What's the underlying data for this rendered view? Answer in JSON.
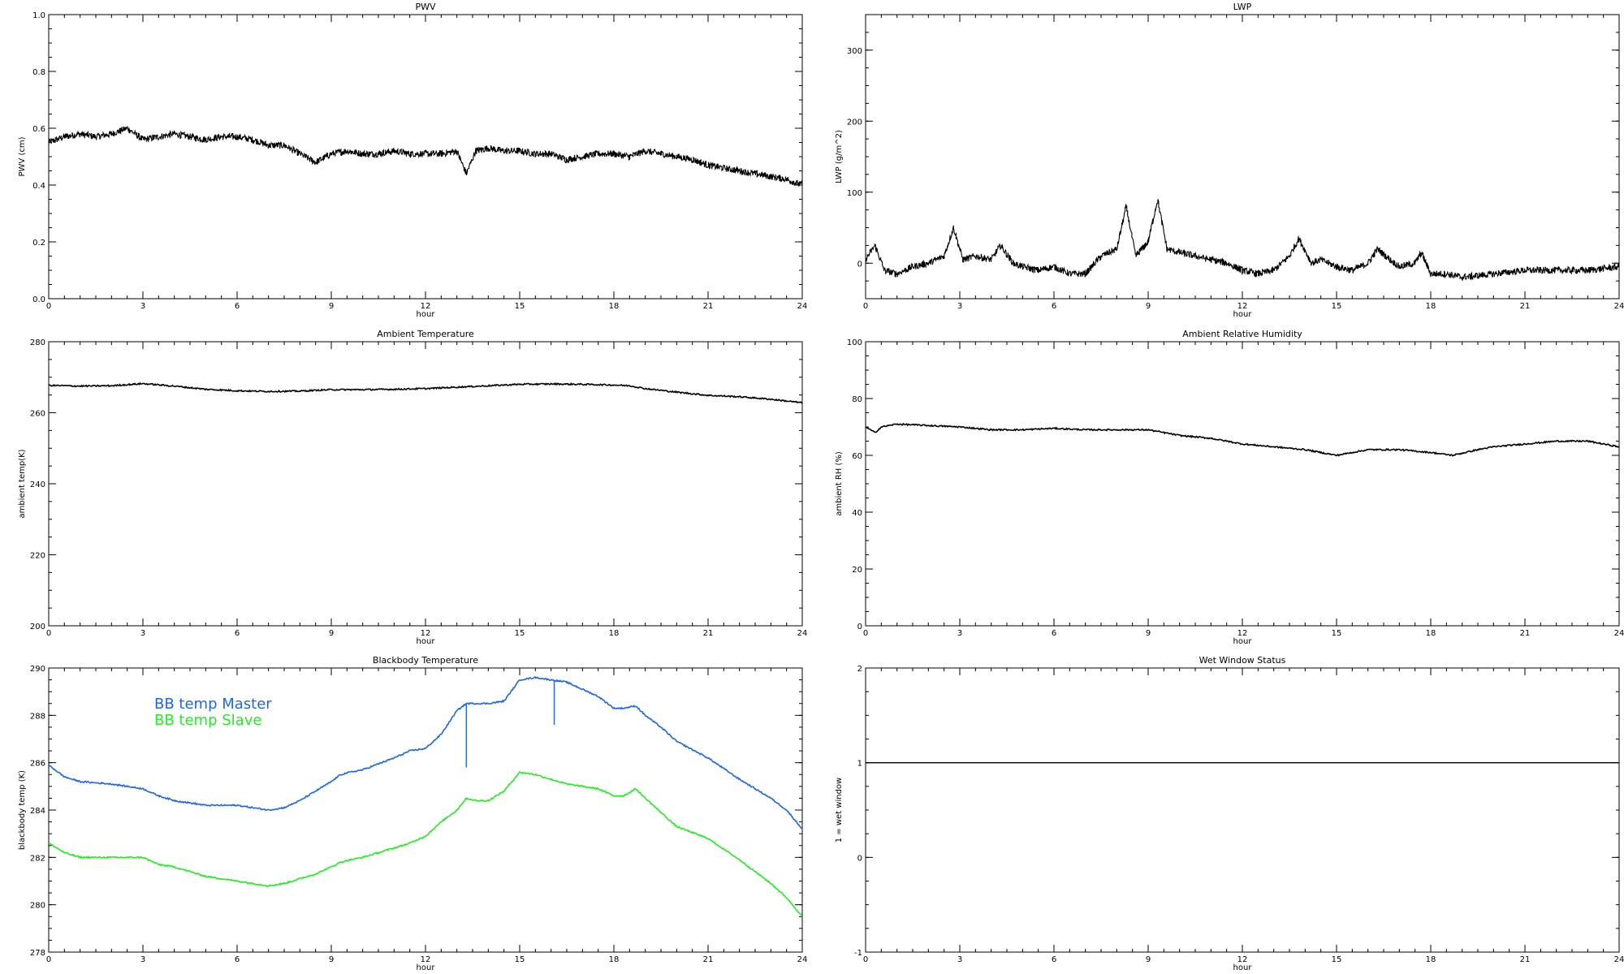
{
  "chart_data": [
    {
      "type": "line",
      "title": "PWV",
      "xlabel": "hour",
      "ylabel": "PWV (cm)",
      "xlim": [
        0,
        24
      ],
      "ylim": [
        0,
        1
      ],
      "xticks": [
        0,
        3,
        6,
        9,
        12,
        15,
        18,
        21,
        24
      ],
      "yticks": [
        0.0,
        0.2,
        0.4,
        0.6,
        0.8,
        1.0
      ],
      "ytick_labels": [
        "0.0",
        "0.2",
        "0.4",
        "0.6",
        "0.8",
        "1.0"
      ],
      "grid": false,
      "series": [
        {
          "color": "#000000",
          "style": "noisy",
          "x": [
            0,
            0.5,
            1,
            1.5,
            2,
            2.5,
            3,
            3.5,
            4,
            4.5,
            5,
            5.5,
            6,
            6.5,
            7,
            7.5,
            8,
            8.5,
            9,
            9.5,
            10,
            10.5,
            11,
            11.5,
            12,
            12.5,
            13,
            13.3,
            13.6,
            14,
            14.5,
            15,
            15.5,
            16,
            16.5,
            17,
            17.5,
            18,
            18.5,
            19,
            19.5,
            20,
            20.5,
            21,
            21.5,
            22,
            22.5,
            23,
            23.5,
            24
          ],
          "y": [
            0.55,
            0.57,
            0.58,
            0.57,
            0.58,
            0.6,
            0.56,
            0.57,
            0.58,
            0.57,
            0.56,
            0.57,
            0.57,
            0.56,
            0.54,
            0.54,
            0.51,
            0.48,
            0.51,
            0.52,
            0.51,
            0.51,
            0.52,
            0.51,
            0.51,
            0.51,
            0.52,
            0.44,
            0.52,
            0.53,
            0.52,
            0.52,
            0.51,
            0.51,
            0.49,
            0.5,
            0.51,
            0.51,
            0.5,
            0.52,
            0.51,
            0.5,
            0.49,
            0.47,
            0.46,
            0.45,
            0.44,
            0.43,
            0.42,
            0.4
          ]
        }
      ]
    },
    {
      "type": "line",
      "title": "LWP",
      "xlabel": "hour",
      "ylabel": "LWP (g/m^2)",
      "xlim": [
        0,
        24
      ],
      "ylim": [
        -50,
        350
      ],
      "xticks": [
        0,
        3,
        6,
        9,
        12,
        15,
        18,
        21,
        24
      ],
      "yticks": [
        0,
        100,
        200,
        300
      ],
      "ytick_labels": [
        "0",
        "100",
        "200",
        "300"
      ],
      "grid": false,
      "series": [
        {
          "color": "#000000",
          "style": "noisy",
          "x": [
            0,
            0.3,
            0.6,
            1,
            1.5,
            2,
            2.5,
            2.8,
            3.1,
            3.5,
            4,
            4.3,
            4.7,
            5,
            5.5,
            6,
            6.5,
            7,
            7.5,
            8,
            8.3,
            8.6,
            9,
            9.3,
            9.6,
            10,
            10.5,
            11,
            11.5,
            12,
            12.5,
            13,
            13.5,
            13.8,
            14.2,
            14.5,
            15,
            15.5,
            16,
            16.3,
            16.7,
            17,
            17.5,
            17.7,
            18,
            18.5,
            19,
            20,
            21,
            22,
            23,
            24
          ],
          "y": [
            5,
            25,
            -10,
            -15,
            -5,
            0,
            10,
            50,
            5,
            10,
            5,
            25,
            0,
            -5,
            -10,
            -5,
            -15,
            -15,
            10,
            20,
            80,
            10,
            30,
            90,
            20,
            15,
            10,
            5,
            0,
            -10,
            -15,
            -10,
            10,
            35,
            0,
            5,
            -5,
            -10,
            0,
            20,
            5,
            -5,
            0,
            15,
            -15,
            -15,
            -20,
            -15,
            -10,
            -10,
            -10,
            -5
          ]
        }
      ]
    },
    {
      "type": "line",
      "title": "Ambient Temperature",
      "xlabel": "hour",
      "ylabel": "ambient temp(K)",
      "xlim": [
        0,
        24
      ],
      "ylim": [
        200,
        280
      ],
      "xticks": [
        0,
        3,
        6,
        9,
        12,
        15,
        18,
        21,
        24
      ],
      "yticks": [
        200,
        220,
        240,
        260,
        280
      ],
      "ytick_labels": [
        "200",
        "220",
        "240",
        "260",
        "280"
      ],
      "grid": false,
      "series": [
        {
          "color": "#000000",
          "style": "smooth",
          "x": [
            0,
            1,
            2,
            3,
            4,
            5,
            6,
            7,
            8,
            9,
            10,
            11,
            12,
            13,
            14,
            15,
            16,
            17,
            18,
            18.5,
            19,
            20,
            21,
            22,
            23,
            24
          ],
          "y": [
            267.7,
            267.5,
            267.6,
            268.2,
            267.5,
            266.6,
            266.2,
            266.0,
            266.1,
            266.5,
            266.5,
            266.6,
            266.8,
            267.2,
            267.6,
            268.0,
            268.1,
            268.0,
            267.8,
            267.6,
            266.8,
            265.8,
            264.9,
            264.5,
            263.8,
            262.8
          ]
        }
      ]
    },
    {
      "type": "line",
      "title": "Ambient Relative Humidity",
      "xlabel": "hour",
      "ylabel": "ambient RH (%)",
      "xlim": [
        0,
        24
      ],
      "ylim": [
        0,
        100
      ],
      "xticks": [
        0,
        3,
        6,
        9,
        12,
        15,
        18,
        21,
        24
      ],
      "yticks": [
        0,
        20,
        40,
        60,
        80,
        100
      ],
      "ytick_labels": [
        "0",
        "20",
        "40",
        "60",
        "80",
        "100"
      ],
      "grid": false,
      "series": [
        {
          "color": "#000000",
          "style": "smooth",
          "x": [
            0,
            0.3,
            0.5,
            1,
            2,
            3,
            4,
            5,
            6,
            7,
            8,
            9,
            10,
            11,
            12,
            13,
            14,
            15,
            16,
            17,
            18,
            18.7,
            19.5,
            20,
            21,
            22,
            23,
            24
          ],
          "y": [
            70,
            68,
            70,
            71,
            70.5,
            70,
            69,
            69,
            69.5,
            69,
            69,
            69,
            67,
            66,
            64,
            63,
            62,
            60,
            62,
            62,
            61,
            60,
            62,
            63,
            64,
            65,
            65,
            63
          ]
        }
      ]
    },
    {
      "type": "line",
      "title": "Blackbody Temperature",
      "xlabel": "hour",
      "ylabel": "blackbody temp (K)",
      "xlim": [
        0,
        24
      ],
      "ylim": [
        278,
        290
      ],
      "xticks": [
        0,
        3,
        6,
        9,
        12,
        15,
        18,
        21,
        24
      ],
      "yticks": [
        278,
        280,
        282,
        284,
        286,
        288,
        290
      ],
      "ytick_labels": [
        "278",
        "280",
        "282",
        "284",
        "286",
        "288",
        "290"
      ],
      "grid": false,
      "legend_position": "top-left",
      "series": [
        {
          "name": "BB temp Master",
          "color": "#1f66e5",
          "style": "smooth",
          "x": [
            0,
            0.5,
            1,
            2,
            3,
            3.5,
            4,
            5,
            6,
            6.5,
            7,
            7.5,
            8,
            8.5,
            9,
            9.3,
            9.6,
            10,
            11,
            11.5,
            12,
            12.5,
            13,
            13.3,
            13.6,
            14,
            14.5,
            15,
            15.5,
            16,
            16.5,
            17,
            17.5,
            18,
            18.3,
            18.7,
            19,
            19.5,
            20,
            21,
            22,
            23,
            23.5,
            24
          ],
          "y": [
            285.9,
            285.4,
            285.2,
            285.1,
            284.9,
            284.6,
            284.4,
            284.2,
            284.2,
            284.1,
            284.0,
            284.1,
            284.4,
            284.8,
            285.2,
            285.5,
            285.6,
            285.7,
            286.2,
            286.5,
            286.6,
            287.2,
            288.2,
            288.5,
            288.5,
            288.5,
            288.6,
            289.5,
            289.6,
            289.5,
            289.4,
            289.1,
            288.8,
            288.3,
            288.3,
            288.4,
            288.0,
            287.5,
            286.9,
            286.2,
            285.3,
            284.5,
            284.0,
            283.2
          ]
        },
        {
          "name": "BB temp Slave",
          "color": "#22ee22",
          "style": "smooth",
          "x": [
            0,
            0.5,
            1,
            2,
            3,
            3.5,
            4,
            5,
            6,
            6.5,
            7,
            7.5,
            8,
            8.5,
            9,
            9.3,
            9.6,
            10,
            11,
            11.5,
            12,
            12.5,
            13,
            13.3,
            13.6,
            14,
            14.5,
            15,
            15.5,
            16,
            16.5,
            17,
            17.5,
            18,
            18.3,
            18.7,
            19,
            19.5,
            20,
            21,
            22,
            23,
            23.5,
            24
          ],
          "y": [
            282.6,
            282.2,
            282.0,
            282.0,
            282.0,
            281.7,
            281.6,
            281.2,
            281.0,
            280.9,
            280.8,
            280.9,
            281.1,
            281.3,
            281.6,
            281.8,
            281.9,
            282.0,
            282.4,
            282.6,
            282.9,
            283.5,
            284.0,
            284.5,
            284.4,
            284.4,
            284.8,
            285.6,
            285.5,
            285.3,
            285.1,
            285.0,
            284.9,
            284.6,
            284.6,
            284.9,
            284.5,
            283.9,
            283.3,
            282.8,
            281.9,
            280.9,
            280.3,
            279.5
          ]
        }
      ],
      "annotations": [
        {
          "type": "spike",
          "x": 13.3,
          "series": "BB temp Master",
          "from": 288.5,
          "to": 285.8
        },
        {
          "type": "spike",
          "x": 16.1,
          "series": "BB temp Master",
          "from": 289.5,
          "to": 287.6
        }
      ]
    },
    {
      "type": "line",
      "title": "Wet Window Status",
      "xlabel": "hour",
      "ylabel": "1 = wet window",
      "xlim": [
        0,
        24
      ],
      "ylim": [
        -1,
        2
      ],
      "xticks": [
        0,
        3,
        6,
        9,
        12,
        15,
        18,
        21,
        24
      ],
      "yticks": [
        -1,
        0,
        1,
        2
      ],
      "ytick_labels": [
        "-1",
        "0",
        "1",
        "2"
      ],
      "grid": false,
      "series": [
        {
          "color": "#000000",
          "style": "flat",
          "x": [
            0,
            24
          ],
          "y": [
            1,
            1
          ]
        }
      ]
    }
  ]
}
